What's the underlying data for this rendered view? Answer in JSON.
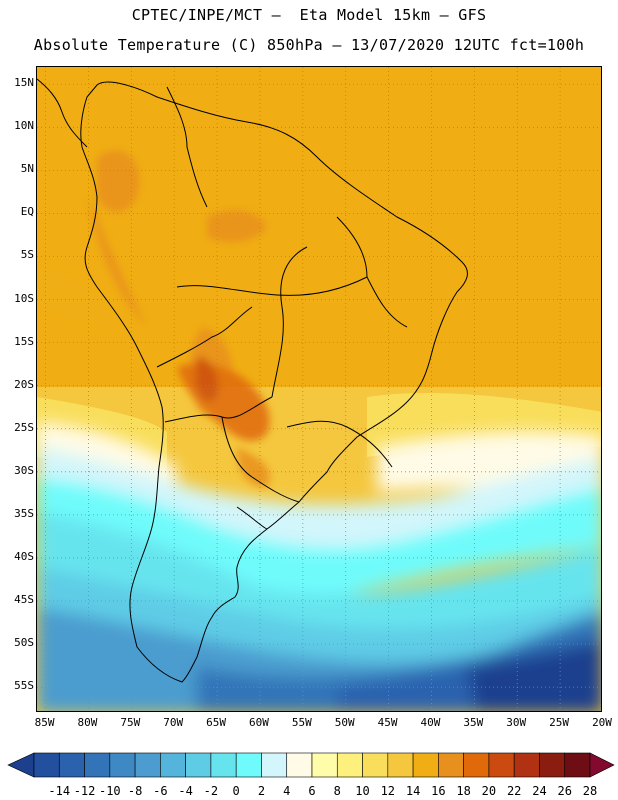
{
  "header": {
    "title_line1": "CPTEC/INPE/MCT –  Eta Model 15km – GFS",
    "title_line2": "Absolute Temperature (C) 850hPa – 13/07/2020 12UTC fct=100h"
  },
  "map": {
    "lat_labels": [
      "15N",
      "10N",
      "5N",
      "EQ",
      "5S",
      "10S",
      "15S",
      "20S",
      "25S",
      "30S",
      "35S",
      "40S",
      "45S",
      "50S",
      "55S"
    ],
    "lon_labels": [
      "85W",
      "80W",
      "75W",
      "70W",
      "65W",
      "60W",
      "55W",
      "50W",
      "45W",
      "40W",
      "35W",
      "30W",
      "25W",
      "20W"
    ],
    "lat_range": [
      17,
      -58
    ],
    "lon_range": [
      -86,
      -20
    ],
    "gridlines": "dotted"
  },
  "legend": {
    "labels": [
      "-14",
      "-12",
      "-10",
      "-8",
      "-6",
      "-4",
      "-2",
      "0",
      "2",
      "4",
      "6",
      "8",
      "10",
      "12",
      "14",
      "16",
      "18",
      "20",
      "22",
      "24",
      "26",
      "28"
    ],
    "colors": [
      "#1c3f8e",
      "#224f9e",
      "#2a62ae",
      "#3374b8",
      "#3e88c4",
      "#4c9ccf",
      "#55b4dc",
      "#5fcce6",
      "#66e4ee",
      "#6ffbfb",
      "#d2f6fb",
      "#fffbe6",
      "#fffcaa",
      "#fdf07c",
      "#f9de5c",
      "#f4c73e",
      "#f0ae14",
      "#e8901e",
      "#e06a0a",
      "#ca4a10",
      "#b03212",
      "#8a1c10",
      "#6e0e14",
      "#820a2e"
    ],
    "unit": "C"
  }
}
